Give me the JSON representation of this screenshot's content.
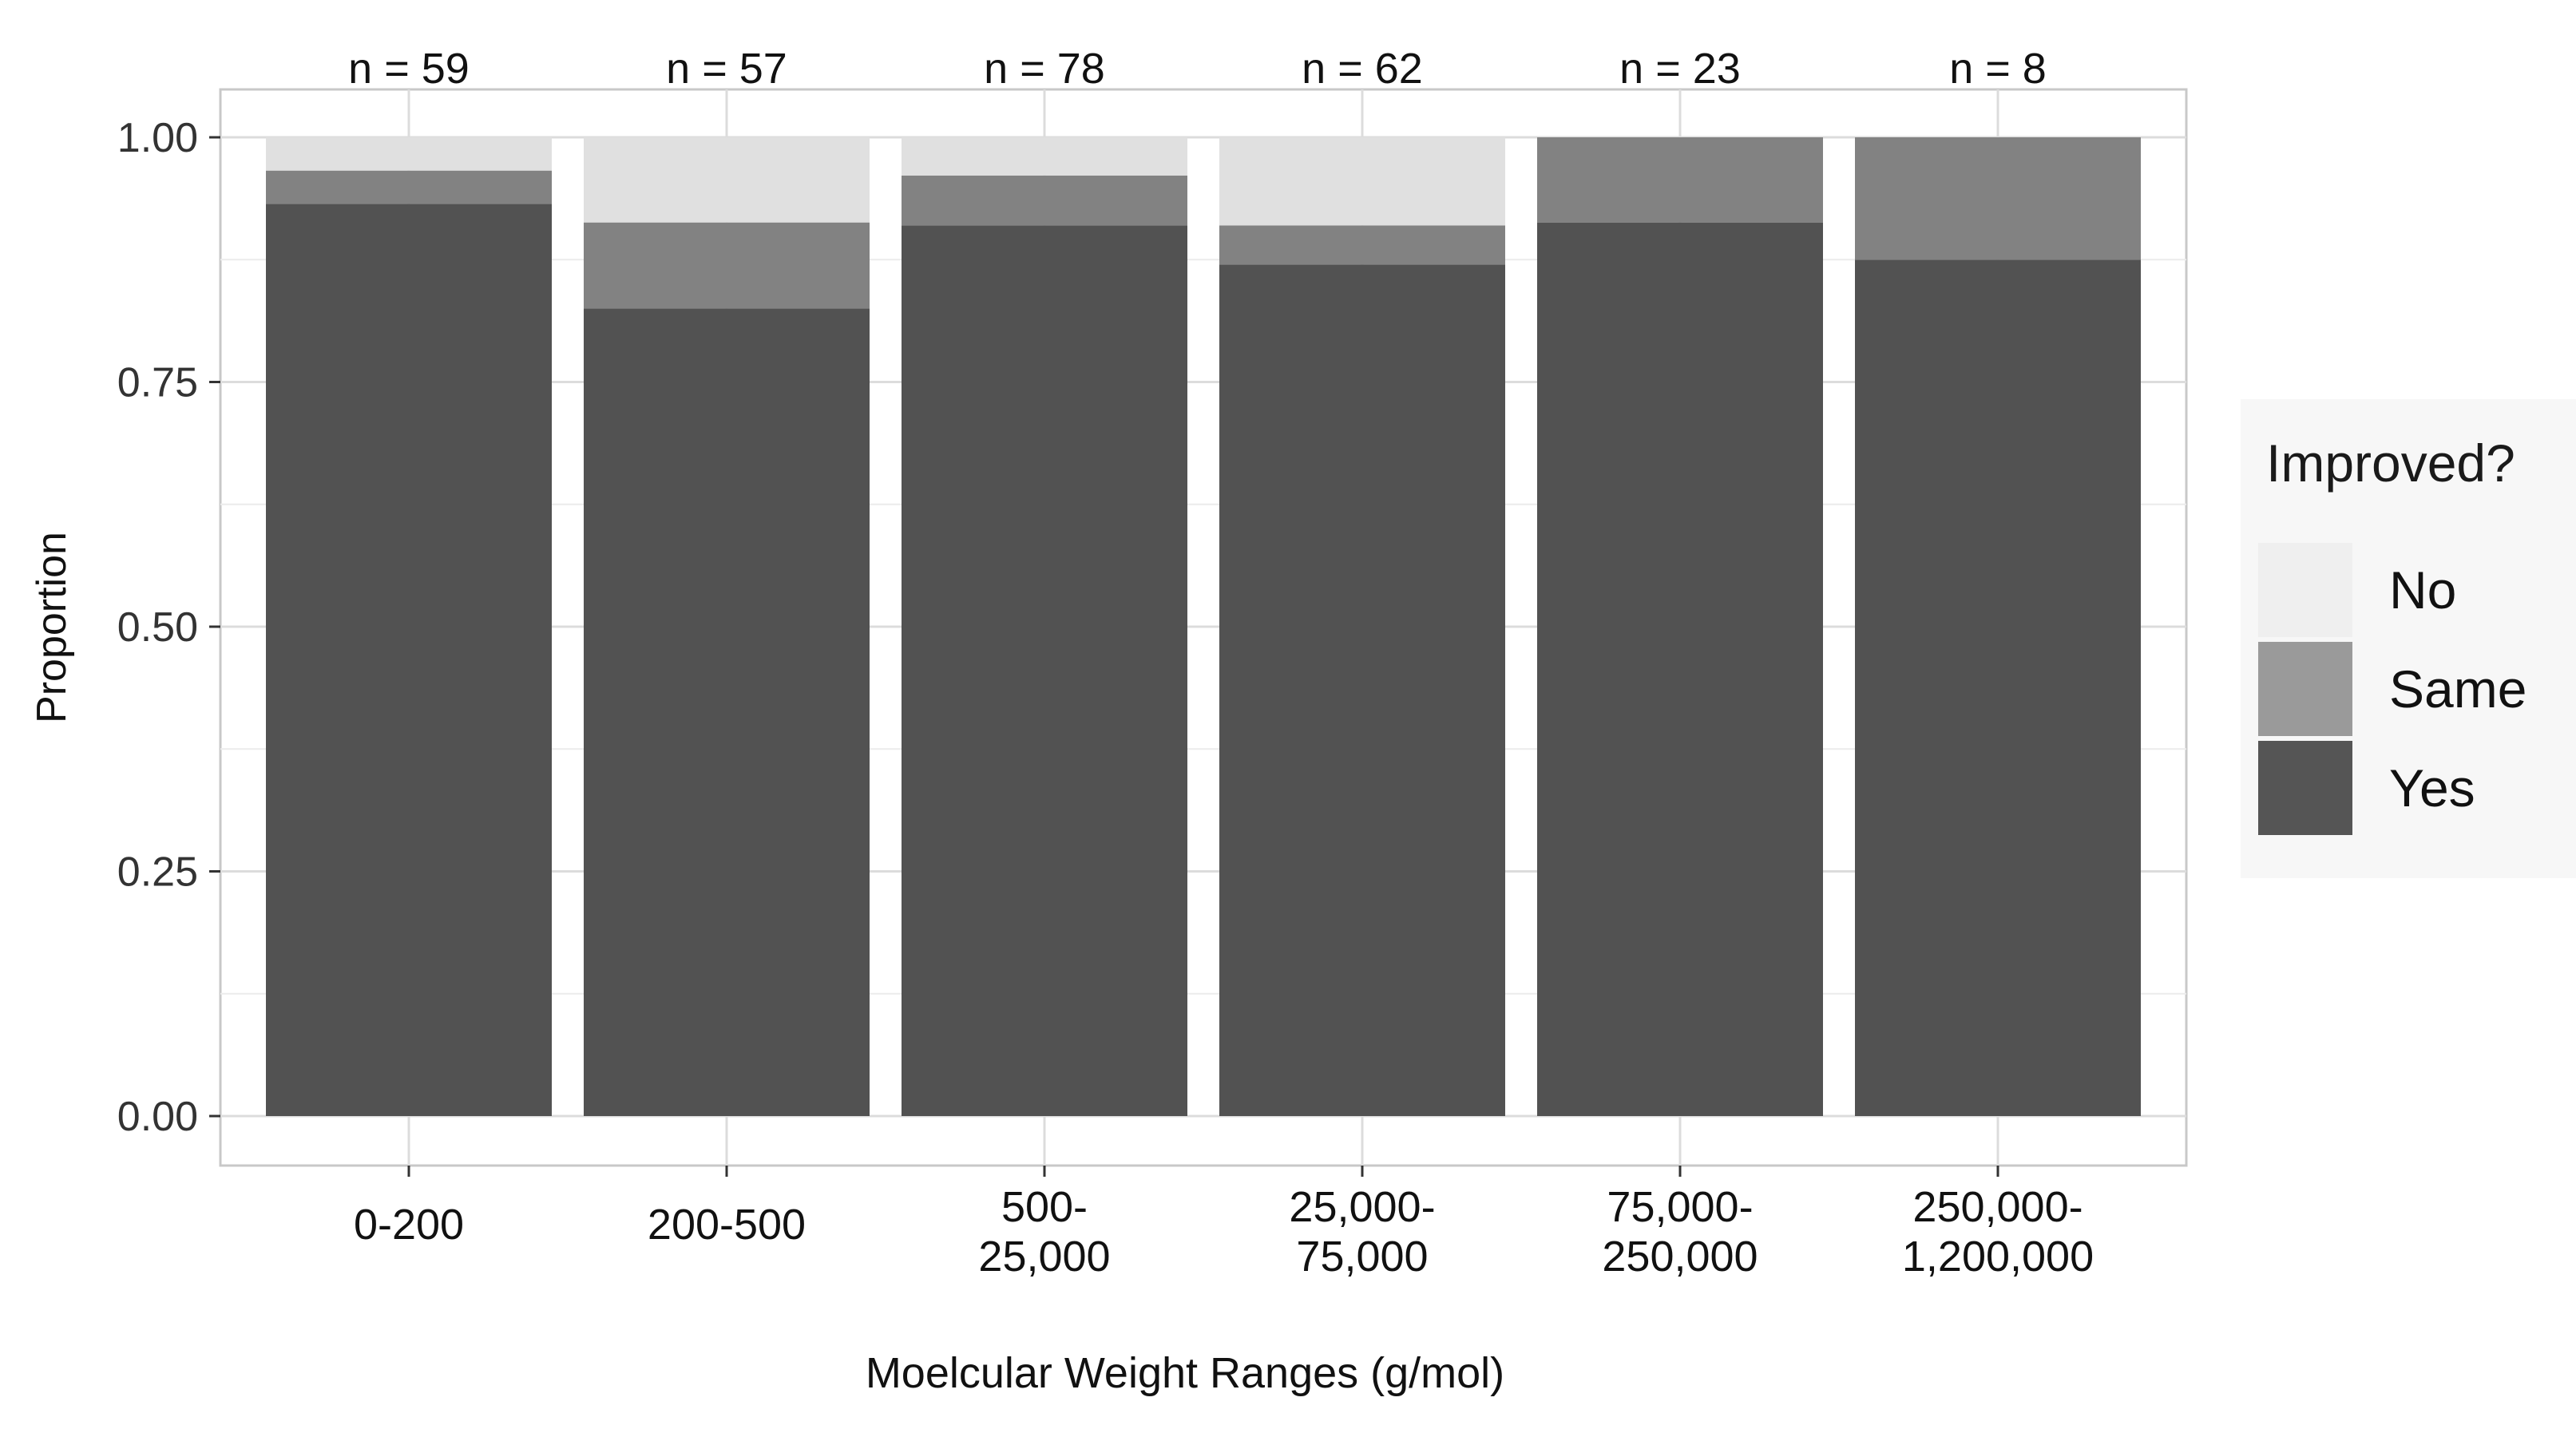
{
  "chart_data": {
    "type": "bar",
    "stacked": true,
    "title": "",
    "xlabel": "Moelcular Weight Ranges (g/mol)",
    "ylabel": "Proportion",
    "ylim": [
      0,
      1
    ],
    "yticks": [
      "0.00",
      "0.25",
      "0.50",
      "0.75",
      "1.00"
    ],
    "ytick_values": [
      0,
      0.25,
      0.5,
      0.75,
      1
    ],
    "grid": true,
    "categories": [
      [
        "0-200"
      ],
      [
        "200-500"
      ],
      [
        "500-",
        "25,000"
      ],
      [
        "25,000-",
        "75,000"
      ],
      [
        "75,000-",
        "250,000"
      ],
      [
        "250,000-",
        "1,200,000"
      ]
    ],
    "counts": [
      "n = 59",
      "n = 57",
      "n = 78",
      "n = 62",
      "n = 23",
      "n = 8"
    ],
    "series": [
      {
        "name": "Yes",
        "color": "#525252",
        "values": [
          0.932,
          0.825,
          0.91,
          0.87,
          0.913,
          0.875
        ]
      },
      {
        "name": "Same",
        "color": "#828282",
        "values": [
          0.034,
          0.088,
          0.051,
          0.04,
          0.087,
          0.125
        ]
      },
      {
        "name": "No",
        "color": "#e0e0e0",
        "values": [
          0.034,
          0.087,
          0.039,
          0.09,
          0.0,
          0.0
        ]
      }
    ],
    "legend": {
      "title": "Improved?",
      "placement": "right",
      "items": [
        {
          "name": "No",
          "color": "#efefef"
        },
        {
          "name": "Same",
          "color": "#9a9a9a"
        },
        {
          "name": "Yes",
          "color": "#555555"
        }
      ]
    }
  }
}
